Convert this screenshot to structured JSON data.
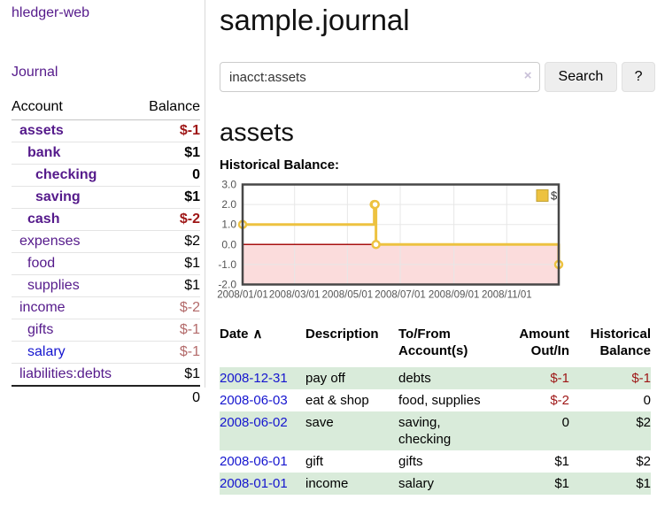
{
  "app": {
    "brand": "hledger-web",
    "nav_journal": "Journal"
  },
  "colors": {
    "link-visited": "#551A8B",
    "link-unvisited": "#1515CF",
    "neg-strong": "#9E1616",
    "neg-muted": "#B36A6A",
    "row-stripe": "#D9EBDA",
    "accent-gold": "#EDC240"
  },
  "sidebar": {
    "header": {
      "account": "Account",
      "balance": "Balance"
    },
    "accounts": [
      {
        "name": "assets",
        "indent": 1,
        "balance": "$-1",
        "bold": true,
        "neg": "strong"
      },
      {
        "name": "bank",
        "indent": 2,
        "balance": "$1",
        "bold": true
      },
      {
        "name": "checking",
        "indent": 3,
        "balance": "0",
        "bold": true
      },
      {
        "name": "saving",
        "indent": 3,
        "balance": "$1",
        "bold": true
      },
      {
        "name": "cash",
        "indent": 2,
        "balance": "$-2",
        "bold": true,
        "neg": "strong"
      },
      {
        "name": "expenses",
        "indent": 1,
        "balance": "$2"
      },
      {
        "name": "food",
        "indent": 2,
        "balance": "$1"
      },
      {
        "name": "supplies",
        "indent": 2,
        "balance": "$1"
      },
      {
        "name": "income",
        "indent": 1,
        "balance": "$-2",
        "neg": "muted"
      },
      {
        "name": "gifts",
        "indent": 2,
        "balance": "$-1",
        "neg": "muted"
      },
      {
        "name": "salary",
        "indent": 2,
        "balance": "$-1",
        "neg": "muted",
        "link": "unvisited"
      },
      {
        "name": "liabilities:debts",
        "indent": 1,
        "balance": "$1"
      }
    ],
    "total": "0"
  },
  "header": {
    "title": "sample.journal"
  },
  "search": {
    "value": "inacct:assets",
    "clear_icon": "×",
    "button": "Search",
    "help_button": "?"
  },
  "account_page": {
    "title": "assets",
    "chart_label": "Historical Balance:"
  },
  "chart_data": {
    "type": "line",
    "title": "Historical Balance:",
    "legend": {
      "position": "top-right",
      "entries": [
        {
          "label": "$",
          "color": "#EDC240"
        }
      ]
    },
    "x_range": [
      "2008-01-01",
      "2008-12-31"
    ],
    "y_range": [
      -2,
      3
    ],
    "x_ticks": [
      {
        "date": "2008-01-01",
        "label": "2008/01/01"
      },
      {
        "date": "2008-03-01",
        "label": "2008/03/01"
      },
      {
        "date": "2008-05-01",
        "label": "2008/05/01"
      },
      {
        "date": "2008-07-01",
        "label": "2008/07/01"
      },
      {
        "date": "2008-09-01",
        "label": "2008/09/01"
      },
      {
        "date": "2008-11-01",
        "label": "2008/11/01"
      }
    ],
    "y_ticks": [
      {
        "value": 3,
        "label": "3.0"
      },
      {
        "value": 2,
        "label": "2.0"
      },
      {
        "value": 1,
        "label": "1.0"
      },
      {
        "value": 0,
        "label": "0.0"
      },
      {
        "value": -1,
        "label": "-1.0"
      },
      {
        "value": -2,
        "label": "-2.0"
      }
    ],
    "series": [
      {
        "name": "$",
        "color": "#EDC240",
        "step": true,
        "points": [
          {
            "date": "2008-01-01",
            "value": 1
          },
          {
            "date": "2008-06-01",
            "value": 2
          },
          {
            "date": "2008-06-02",
            "value": 2
          },
          {
            "date": "2008-06-03",
            "value": 0
          },
          {
            "date": "2008-12-31",
            "value": -1
          }
        ]
      }
    ],
    "grid": {
      "color": "#E7E7E7",
      "border_color": "#474747",
      "negative_region_fill": "#FBDCDC",
      "zero_line_color": "#A81111",
      "label_color": "#545454"
    }
  },
  "register": {
    "columns": {
      "date": "Date",
      "sort_icon": "∧",
      "description": "Description",
      "accounts": "To/From Account(s)",
      "amount": "Amount Out/In",
      "balance": "Historical Balance"
    },
    "rows": [
      {
        "date": "2008-12-31",
        "description": "pay off",
        "accounts": "debts",
        "amount": "$-1",
        "balance": "$-1"
      },
      {
        "date": "2008-06-03",
        "description": "eat & shop",
        "accounts": "food, supplies",
        "amount": "$-2",
        "balance": "0"
      },
      {
        "date": "2008-06-02",
        "description": "save",
        "accounts": "saving, checking",
        "amount": "0",
        "balance": "$2"
      },
      {
        "date": "2008-06-01",
        "description": "gift",
        "accounts": "gifts",
        "amount": "$1",
        "balance": "$2"
      },
      {
        "date": "2008-01-01",
        "description": "income",
        "accounts": "salary",
        "amount": "$1",
        "balance": "$1"
      }
    ]
  }
}
